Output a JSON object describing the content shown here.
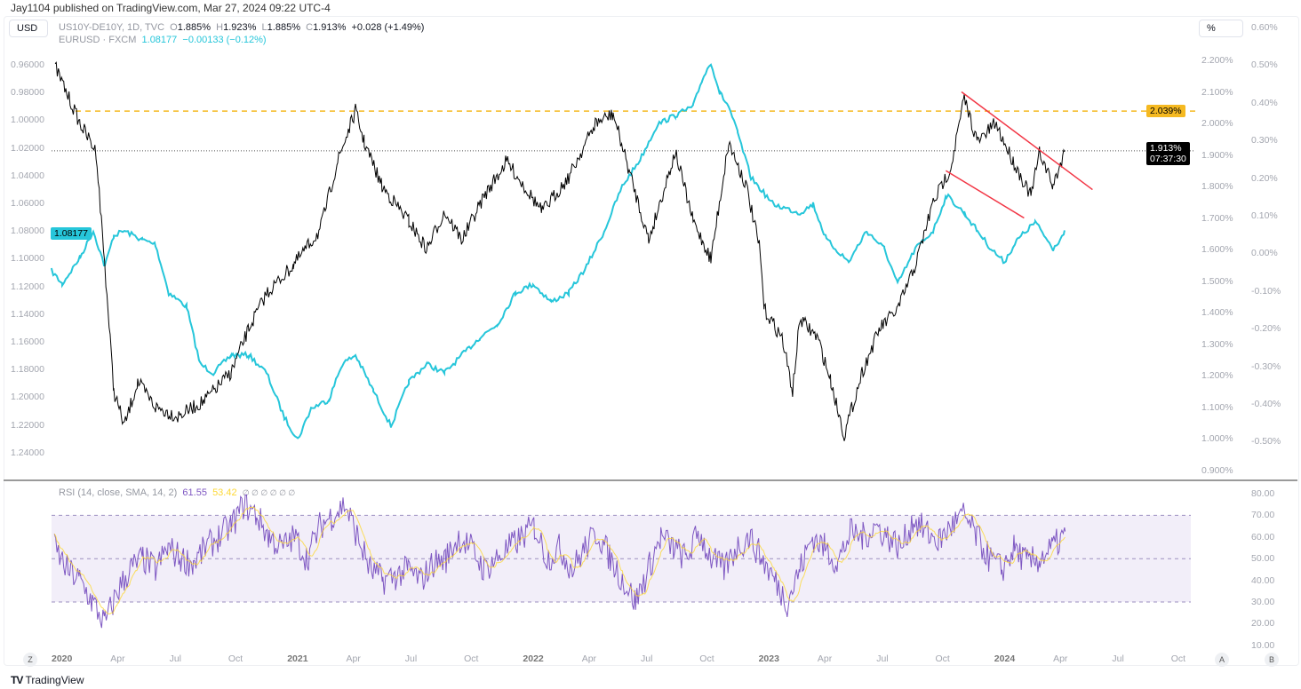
{
  "header": {
    "published": "Jay1104 published on TradingView.com, Mar 27, 2024 09:22 UTC-4",
    "currency_button": "USD",
    "percent_button": "%"
  },
  "legend": {
    "main": {
      "symbol": "US10Y-DE10Y, 1D, TVC",
      "o_label": "O",
      "o": "1.885%",
      "h_label": "H",
      "h": "1.923%",
      "l_label": "L",
      "l": "1.885%",
      "c_label": "C",
      "c": "1.913%",
      "change": "+0.028 (+1.49%)"
    },
    "overlay": {
      "symbol": "EURUSD · FXCM",
      "value": "1.08177",
      "change": "−0.00133 (−0.12%)"
    },
    "rsi": {
      "label": "RSI (14, close, SMA, 14, 2)",
      "value": "61.55",
      "sma": "53.42",
      "na": "∅ ∅ ∅ ∅ ∅ ∅"
    }
  },
  "tags": {
    "eurusd": "1.08177",
    "level": "2.039%",
    "last": "1.913%",
    "countdown": "07:37:30"
  },
  "axes": {
    "left": [
      "0.96000",
      "0.98000",
      "1.00000",
      "1.02000",
      "1.04000",
      "1.06000",
      "1.08000",
      "1.10000",
      "1.12000",
      "1.14000",
      "1.16000",
      "1.18000",
      "1.20000",
      "1.22000",
      "1.24000"
    ],
    "mid": [
      "2.200%",
      "2.100%",
      "2.000%",
      "1.900%",
      "1.800%",
      "1.700%",
      "1.600%",
      "1.500%",
      "1.400%",
      "1.300%",
      "1.200%",
      "1.100%",
      "1.000%",
      "0.900%"
    ],
    "right": [
      "0.60%",
      "0.50%",
      "0.40%",
      "0.30%",
      "0.20%",
      "0.10%",
      "0.00%",
      "-0.10%",
      "-0.20%",
      "-0.30%",
      "-0.40%",
      "-0.50%"
    ],
    "rsi": [
      "80.00",
      "70.00",
      "60.00",
      "50.00",
      "40.00",
      "30.00",
      "20.00",
      "10.00"
    ],
    "time": [
      "2020",
      "Apr",
      "Jul",
      "Oct",
      "2021",
      "Apr",
      "Jul",
      "Oct",
      "2022",
      "Apr",
      "Jul",
      "Oct",
      "2023",
      "Apr",
      "Jul",
      "Oct",
      "2024",
      "Apr",
      "Jul",
      "Oct"
    ],
    "time_bold": [
      0,
      4,
      8,
      12,
      16
    ],
    "z_button": "Z",
    "a_button": "A",
    "b_button": "B"
  },
  "footer": {
    "logo": "TradingView"
  },
  "colors": {
    "spread": "#000000",
    "eurusd": "#26c6da",
    "rsi": "#7e57c2",
    "rsi_sma": "#fdd835",
    "trend": "#f23645",
    "level": "#f5b921"
  },
  "chart_data": {
    "type": "line",
    "x_unit": "months since Jan 2020",
    "series": [
      {
        "name": "US10Y-DE10Y (%)",
        "x": [
          -0.36,
          0.91,
          1.73,
          2.18,
          2.64,
          3.18,
          3.86,
          4.77,
          5.91,
          7.27,
          8.64,
          9.55,
          10.45,
          11.82,
          13.18,
          14.09,
          15,
          15.45,
          16.36,
          17.73,
          18.64,
          19.55,
          20.45,
          21.59,
          22.73,
          23.64,
          24.55,
          25.91,
          27.27,
          28.18,
          29.09,
          30,
          31.36,
          32.27,
          33.18,
          34.09,
          35,
          35.68,
          35.91,
          36.82,
          37.36,
          37.73,
          38.64,
          39.32,
          40,
          40.91,
          41.82,
          42.73,
          43.64,
          44.55,
          45.45,
          46.14,
          46.82,
          47.73,
          48.64,
          49.55,
          50,
          50.68,
          51.27
        ],
        "values": [
          2.18,
          2.0,
          1.91,
          1.55,
          1.15,
          1.04,
          1.18,
          1.1,
          1.07,
          1.12,
          1.21,
          1.35,
          1.46,
          1.55,
          1.66,
          1.88,
          2.04,
          1.94,
          1.8,
          1.69,
          1.6,
          1.72,
          1.63,
          1.77,
          1.88,
          1.8,
          1.72,
          1.83,
          2.0,
          2.03,
          1.83,
          1.63,
          1.91,
          1.69,
          1.57,
          1.94,
          1.8,
          1.6,
          1.41,
          1.32,
          1.15,
          1.38,
          1.32,
          1.18,
          1.01,
          1.21,
          1.35,
          1.41,
          1.55,
          1.75,
          1.86,
          2.08,
          1.94,
          2.0,
          1.88,
          1.77,
          1.91,
          1.8,
          1.91
        ]
      },
      {
        "name": "EURUSD (inverted)",
        "x": [
          -0.55,
          0,
          0.91,
          1.59,
          2.18,
          2.64,
          3.18,
          4.09,
          4.77,
          5.45,
          6.36,
          7.05,
          7.73,
          8.64,
          9.55,
          10.45,
          11.36,
          12.05,
          12.73,
          13.64,
          14.32,
          15,
          15.91,
          16.82,
          17.73,
          18.64,
          19.55,
          20.45,
          21.36,
          22.27,
          23.18,
          24.09,
          25,
          25.91,
          26.82,
          27.73,
          28.64,
          29.55,
          30.45,
          31.36,
          32.27,
          32.73,
          33.18,
          33.64,
          34.09,
          34.55,
          35.23,
          36.36,
          37.73,
          38.41,
          39.09,
          40.23,
          41.14,
          42.05,
          42.73,
          43.64,
          44.55,
          45.23,
          46.14,
          46.82,
          47.5,
          48.18,
          48.86,
          49.77,
          50.68,
          51.27
        ],
        "values": [
          1.1087,
          1.1183,
          1.0991,
          1.0799,
          1.1055,
          1.0831,
          1.0799,
          1.0863,
          1.0895,
          1.1247,
          1.1344,
          1.176,
          1.1824,
          1.1696,
          1.1696,
          1.1824,
          1.2145,
          1.2305,
          1.2081,
          1.2017,
          1.176,
          1.1696,
          1.1952,
          1.2209,
          1.1888,
          1.176,
          1.1824,
          1.1696,
          1.1568,
          1.1472,
          1.1247,
          1.1183,
          1.1311,
          1.1247,
          1.1055,
          1.0799,
          1.0478,
          1.0286,
          1.0029,
          0.9965,
          0.9901,
          0.9709,
          0.9581,
          0.9805,
          0.9901,
          1.0094,
          1.0414,
          1.0606,
          1.067,
          1.0606,
          1.0863,
          1.1023,
          1.0799,
          1.0927,
          1.1183,
          1.0927,
          1.0799,
          1.0542,
          1.067,
          1.0799,
          1.0927,
          1.1023,
          1.0863,
          1.0735,
          1.0927,
          1.0812
        ]
      },
      {
        "name": "RSI",
        "x_range": [
          -0.4,
          51.3
        ],
        "values": [
          55,
          45,
          40,
          30,
          20,
          35,
          45,
          50,
          45,
          55,
          50,
          48,
          55,
          60,
          65,
          75,
          70,
          60,
          55,
          60,
          50,
          65,
          70,
          75,
          60,
          45,
          40,
          42,
          45,
          40,
          48,
          50,
          60,
          55,
          45,
          50,
          55,
          60,
          65,
          50,
          55,
          45,
          55,
          62,
          50,
          40,
          30,
          45,
          60,
          55,
          50,
          62,
          50,
          45,
          55,
          60,
          50,
          40,
          30,
          45,
          60,
          55,
          48,
          62,
          60,
          65,
          60,
          55,
          68,
          62,
          58,
          65,
          70,
          60,
          50,
          45,
          55,
          48,
          50,
          55,
          61
        ]
      }
    ],
    "annotations": {
      "horizontal_level": 2.039,
      "last_price": 1.913,
      "rsi_bands": [
        30,
        70
      ],
      "rsi_mid": 50,
      "trend_channel": [
        {
          "from": [
            46.0,
            2.1
          ],
          "to": [
            52.7,
            1.79
          ]
        },
        {
          "from": [
            45.2,
            1.85
          ],
          "to": [
            49.2,
            1.7
          ]
        }
      ]
    },
    "ylim_spread": [
      0.9,
      2.2
    ],
    "ylim_eurusd": [
      0.96,
      1.24
    ],
    "ylim_rsi": [
      10,
      80
    ]
  }
}
